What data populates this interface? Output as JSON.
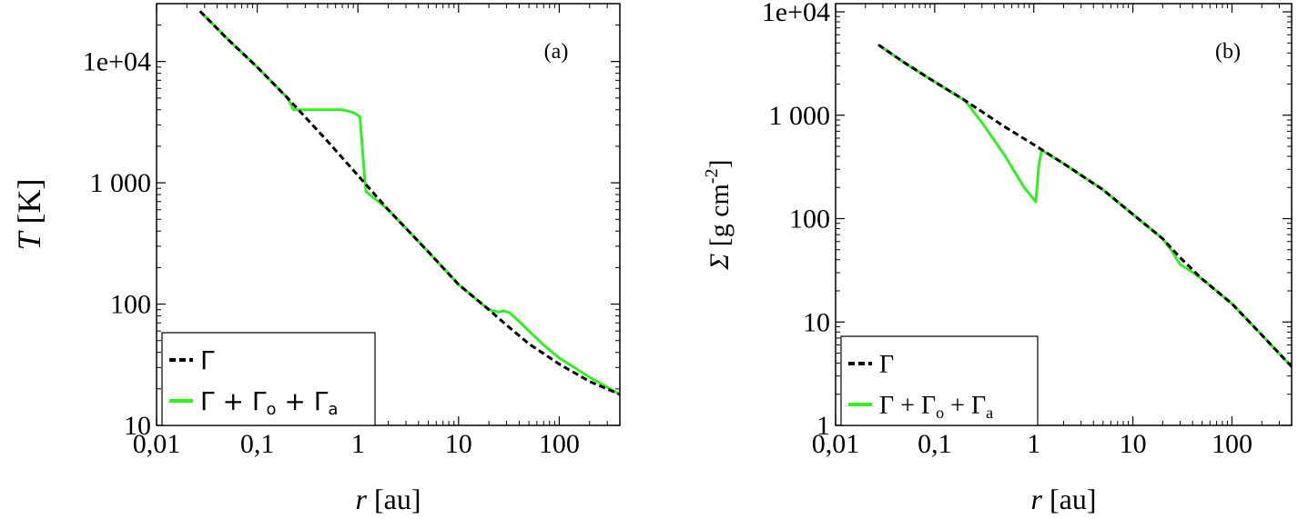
{
  "chart_data": [
    {
      "type": "line",
      "panel_label": "(a)",
      "xlabel_var": "r",
      "xlabel_unit": " [au]",
      "ylabel_var": "T",
      "ylabel_unit": " [K]",
      "xscale": "log",
      "yscale": "log",
      "xlim": [
        0.01,
        400
      ],
      "ylim": [
        10,
        30000
      ],
      "x_ticks": [
        0.01,
        0.1,
        1,
        10,
        100
      ],
      "x_tick_labels": [
        "0,01",
        "0,1",
        "1",
        "10",
        "100"
      ],
      "y_ticks": [
        10,
        100,
        1000,
        10000
      ],
      "y_tick_labels": [
        "10",
        "100",
        "1 000",
        "1e+04"
      ],
      "legend_position": "bottom-left",
      "series": [
        {
          "name": "Γ",
          "style": "dashed",
          "color": "#000000",
          "x": [
            0.027,
            0.05,
            0.1,
            0.2,
            0.5,
            1,
            2,
            5,
            10,
            20,
            30,
            50,
            100,
            200,
            400
          ],
          "y": [
            26000,
            15500,
            9000,
            5000,
            2200,
            1150,
            600,
            270,
            145,
            90,
            67,
            47,
            32,
            23,
            18
          ]
        },
        {
          "name": "Γ + Γo + Γa",
          "legend_parts": [
            "Γ + Γ",
            "o",
            " + Γ",
            "a"
          ],
          "style": "solid",
          "color": "#33ee22",
          "x": [
            0.027,
            0.05,
            0.1,
            0.2,
            0.23,
            0.4,
            0.7,
            0.9,
            1.05,
            1.15,
            1.2,
            2,
            5,
            10,
            20,
            25,
            28,
            32,
            40,
            50,
            70,
            100,
            200,
            400
          ],
          "y": [
            26000,
            15500,
            9000,
            5000,
            4000,
            4000,
            4000,
            3800,
            3500,
            1300,
            850,
            600,
            270,
            145,
            90,
            86,
            88,
            85,
            72,
            60,
            46,
            36,
            25,
            18
          ]
        }
      ]
    },
    {
      "type": "line",
      "panel_label": "(b)",
      "xlabel_var": "r",
      "xlabel_unit": " [au]",
      "ylabel_var": "Σ",
      "ylabel_unit_main": " [g cm",
      "ylabel_unit_sup": "-2",
      "ylabel_unit_end": "]",
      "xscale": "log",
      "yscale": "log",
      "xlim": [
        0.01,
        400
      ],
      "ylim": [
        1,
        12000
      ],
      "x_ticks": [
        0.01,
        0.1,
        1,
        10,
        100
      ],
      "x_tick_labels": [
        "0,01",
        "0,1",
        "1",
        "10",
        "100"
      ],
      "y_ticks": [
        1,
        10,
        100,
        1000,
        10000
      ],
      "y_tick_labels": [
        "1",
        "10",
        "100",
        "1 000",
        "1e+04"
      ],
      "legend_position": "bottom-left",
      "series": [
        {
          "name": "Γ",
          "style": "dashed",
          "color": "#000000",
          "x": [
            0.027,
            0.05,
            0.1,
            0.2,
            0.5,
            1,
            2,
            5,
            10,
            20,
            30,
            50,
            100,
            200,
            400
          ],
          "y": [
            4800,
            3200,
            2100,
            1400,
            780,
            520,
            340,
            190,
            110,
            64,
            42,
            26,
            15,
            7.5,
            3.7
          ]
        },
        {
          "name": "Γ + Γo + Γa",
          "legend_parts": [
            "Γ + Γ",
            "o",
            " + Γ",
            "a"
          ],
          "style": "solid",
          "color": "#33ee22",
          "x": [
            0.027,
            0.05,
            0.1,
            0.2,
            0.22,
            0.3,
            0.5,
            0.8,
            1.05,
            1.12,
            1.2,
            2,
            5,
            10,
            20,
            25,
            30,
            35,
            50,
            70,
            100,
            200,
            400
          ],
          "y": [
            4800,
            3200,
            2100,
            1400,
            1250,
            850,
            420,
            200,
            145,
            320,
            460,
            340,
            190,
            110,
            64,
            48,
            36,
            33,
            26,
            20,
            15,
            7.5,
            3.7
          ]
        }
      ]
    }
  ]
}
